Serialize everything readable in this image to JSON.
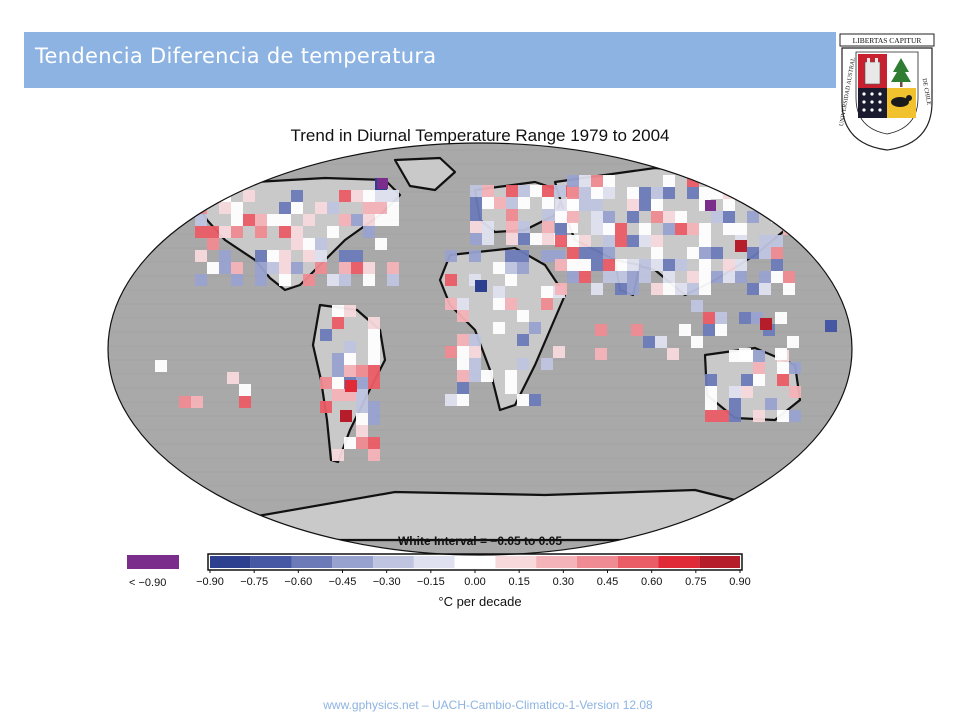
{
  "slide": {
    "title": "Tendencia Diferencia de temperatura",
    "footer": "www.gphysics.net – UACH-Cambio-Climatico-1-Version 12.08",
    "accent_color": "#8db3e2"
  },
  "logo": {
    "banner_text": "LIBERTAS CAPITUR",
    "arc_text_left": "UNIVERSIDAD AUSTRAL",
    "arc_text_right": "DE CHILE",
    "icon": "university-crest-icon"
  },
  "map": {
    "title": "Trend in Diurnal Temperature Range 1979 to 2004",
    "white_interval_label": "White Interval = −0.05 to 0.05",
    "units_label": "°C per decade",
    "below_min_label": "< −0.90",
    "below_min_color": "#7b2d8b",
    "no_data_color": "#a9a9a9",
    "colorbar": {
      "ticks": [
        "−0.90",
        "−0.75",
        "−0.60",
        "−0.45",
        "−0.30",
        "−0.15",
        "0.00",
        "0.15",
        "0.30",
        "0.45",
        "0.60",
        "0.75",
        "0.90"
      ],
      "colors": [
        "#2d3f8f",
        "#4657a3",
        "#6c7bb8",
        "#98a2cf",
        "#bfc4e0",
        "#dfe1f0",
        "#ffffff",
        "#f7d9dc",
        "#f4b3b8",
        "#ef8b92",
        "#ea5c66",
        "#e02a38",
        "#b51d2a"
      ]
    }
  }
}
